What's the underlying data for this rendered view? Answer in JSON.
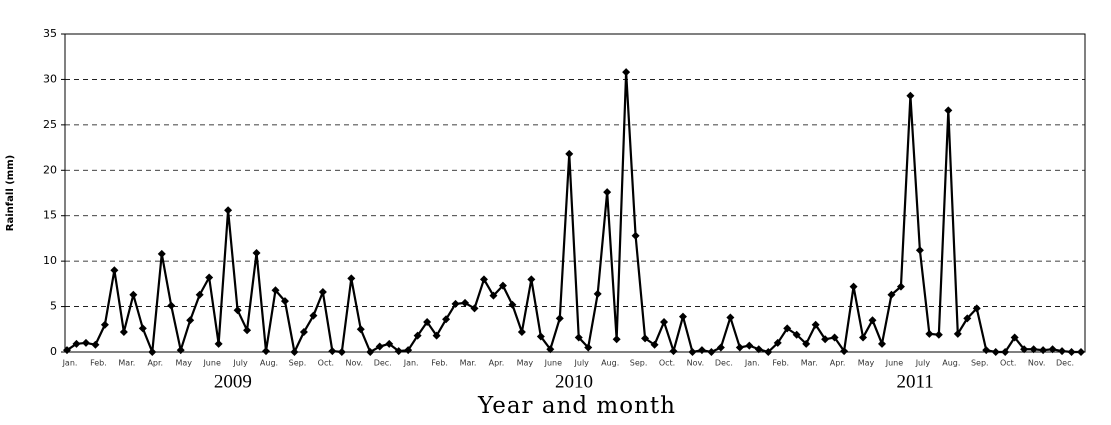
{
  "chart_data": {
    "type": "line",
    "y_label": "Rainfall (mm)",
    "x_label": "Year and month",
    "year_labels": [
      "2009",
      "2010",
      "2011"
    ],
    "categories": [
      "Jan.",
      null,
      null,
      "Feb.",
      null,
      null,
      "Mar.",
      null,
      null,
      "Apr.",
      null,
      null,
      "May",
      null,
      null,
      "June",
      null,
      null,
      "July",
      null,
      null,
      "Aug.",
      null,
      null,
      "Sep.",
      null,
      null,
      "Oct.",
      null,
      null,
      "Nov.",
      null,
      null,
      "Dec.",
      null,
      null,
      "Jan.",
      null,
      null,
      "Feb.",
      null,
      null,
      "Mar.",
      null,
      null,
      "Apr.",
      null,
      null,
      "May",
      null,
      null,
      "June",
      null,
      null,
      "July",
      null,
      null,
      "Aug.",
      null,
      null,
      "Sep.",
      null,
      null,
      "Oct.",
      null,
      null,
      "Nov.",
      null,
      null,
      "Dec.",
      null,
      null,
      "Jan.",
      null,
      null,
      "Feb.",
      null,
      null,
      "Mar.",
      null,
      null,
      "Apr.",
      null,
      null,
      "May",
      null,
      null,
      "June",
      null,
      null,
      "July",
      null,
      null,
      "Aug.",
      null,
      null,
      "Sep.",
      null,
      null,
      "Oct.",
      null,
      null,
      "Nov.",
      null,
      null,
      "Dec.",
      null,
      null
    ],
    "values": [
      0.2,
      0.9,
      1.0,
      0.8,
      3.0,
      9.0,
      2.2,
      6.3,
      2.6,
      0.0,
      10.8,
      5.1,
      0.2,
      3.5,
      6.3,
      8.2,
      0.9,
      15.6,
      4.6,
      2.4,
      10.9,
      0.1,
      6.8,
      5.6,
      0.0,
      2.2,
      4.0,
      6.6,
      0.1,
      0.0,
      8.1,
      2.5,
      0.0,
      0.6,
      0.9,
      0.1,
      0.2,
      1.8,
      3.3,
      1.8,
      3.6,
      5.3,
      5.4,
      4.8,
      8.0,
      6.2,
      7.3,
      5.2,
      2.2,
      8.0,
      1.7,
      0.3,
      3.7,
      21.8,
      1.6,
      0.5,
      6.4,
      17.6,
      1.4,
      30.8,
      12.8,
      1.5,
      0.8,
      3.3,
      0.1,
      3.9,
      0.0,
      0.2,
      0.0,
      0.5,
      3.8,
      0.5,
      0.7,
      0.3,
      0.0,
      1.0,
      2.6,
      1.9,
      0.9,
      3.0,
      1.4,
      1.6,
      0.1,
      7.2,
      1.6,
      3.5,
      0.9,
      6.3,
      7.2,
      28.2,
      11.2,
      2.0,
      1.9,
      26.6,
      2.0,
      3.7,
      4.8,
      0.2,
      0.0,
      0.0,
      1.6,
      0.3,
      0.3,
      0.2,
      0.3,
      0.1,
      0.0,
      0.0
    ],
    "color": "#000000",
    "ylim": [
      0,
      35
    ],
    "yticks": [
      0,
      5,
      10,
      15,
      20,
      25,
      30,
      35
    ],
    "grid": true
  }
}
